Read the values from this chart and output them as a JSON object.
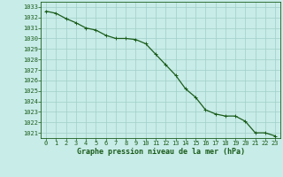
{
  "hours": [
    0,
    1,
    2,
    3,
    4,
    5,
    6,
    7,
    8,
    9,
    10,
    11,
    12,
    13,
    14,
    15,
    16,
    17,
    18,
    19,
    20,
    21,
    22,
    23
  ],
  "pressure": [
    1032.6,
    1032.4,
    1031.9,
    1031.5,
    1031.0,
    1030.8,
    1030.3,
    1030.0,
    1030.0,
    1029.9,
    1029.5,
    1028.5,
    1027.5,
    1026.5,
    1025.2,
    1024.4,
    1023.2,
    1022.8,
    1022.6,
    1022.6,
    1022.1,
    1021.0,
    1021.0,
    1020.7
  ],
  "ylim": [
    1020.5,
    1033.5
  ],
  "yticks": [
    1021,
    1022,
    1023,
    1024,
    1025,
    1026,
    1027,
    1028,
    1029,
    1030,
    1031,
    1032,
    1033
  ],
  "xticks": [
    0,
    1,
    2,
    3,
    4,
    5,
    6,
    7,
    8,
    9,
    10,
    11,
    12,
    13,
    14,
    15,
    16,
    17,
    18,
    19,
    20,
    21,
    22,
    23
  ],
  "line_color": "#1a5c1a",
  "marker_color": "#1a5c1a",
  "bg_color": "#c8ece8",
  "grid_color": "#a0cfc8",
  "text_color": "#1a5c1a",
  "xlabel": "Graphe pression niveau de la mer (hPa)",
  "xlabel_fontsize": 6.0,
  "tick_fontsize": 5.0,
  "line_width": 0.9,
  "marker_size": 2.5
}
